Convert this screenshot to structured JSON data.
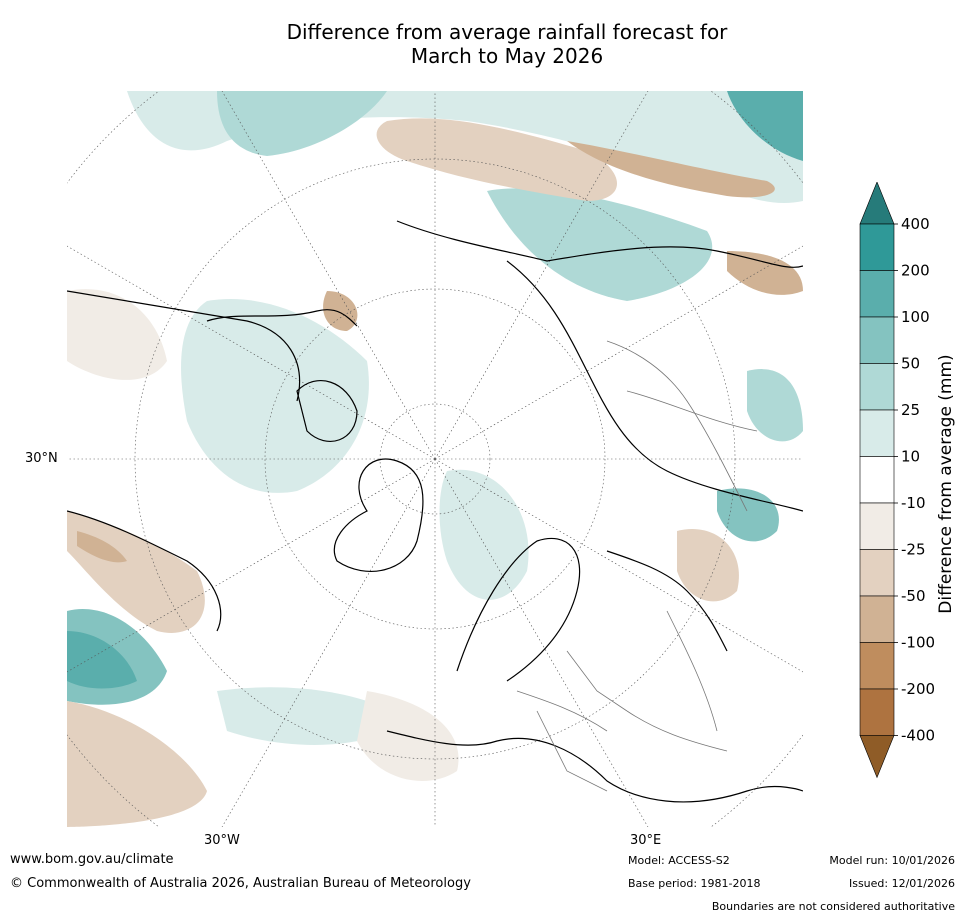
{
  "title": {
    "line1": "Difference from average rainfall forecast for",
    "line2": "March to May 2026"
  },
  "map": {
    "projection": "north-polar-stereographic",
    "lat_label": "30°N",
    "lon_labels": [
      "30°W",
      "30°E"
    ]
  },
  "colorbar": {
    "title": "Difference from average (mm)",
    "tick_labels": [
      "400",
      "200",
      "100",
      "50",
      "25",
      "10",
      "-10",
      "-25",
      "-50",
      "-100",
      "-200",
      "-400"
    ],
    "bins": [
      {
        "range": "> 400",
        "color": "#267b7a"
      },
      {
        "range": "200 to 400",
        "color": "#2f9998"
      },
      {
        "range": "100 to 200",
        "color": "#5aaeac"
      },
      {
        "range": "50 to 100",
        "color": "#84c3c0"
      },
      {
        "range": "25 to 50",
        "color": "#afd9d6"
      },
      {
        "range": "10 to 25",
        "color": "#d8ebe9"
      },
      {
        "range": "-10 to 10",
        "color": "#ffffff"
      },
      {
        "range": "-25 to -10",
        "color": "#f1ece6"
      },
      {
        "range": "-50 to -25",
        "color": "#e3d1c0"
      },
      {
        "range": "-100 to -50",
        "color": "#d0b294"
      },
      {
        "range": "-200 to -100",
        "color": "#bf8d5e"
      },
      {
        "range": "-400 to -200",
        "color": "#ae7340"
      },
      {
        "range": "< -400",
        "color": "#8f5c27"
      }
    ]
  },
  "footer": {
    "website": "www.bom.gov.au/climate",
    "copyright": "© Commonwealth of Australia 2026, Australian Bureau of Meteorology",
    "model": "Model: ACCESS-S2",
    "base_period": "Base period: 1981-2018",
    "model_run": "Model run: 10/01/2026",
    "issued": "Issued: 12/01/2026",
    "disclaimer": "Boundaries are not considered authoritative"
  }
}
